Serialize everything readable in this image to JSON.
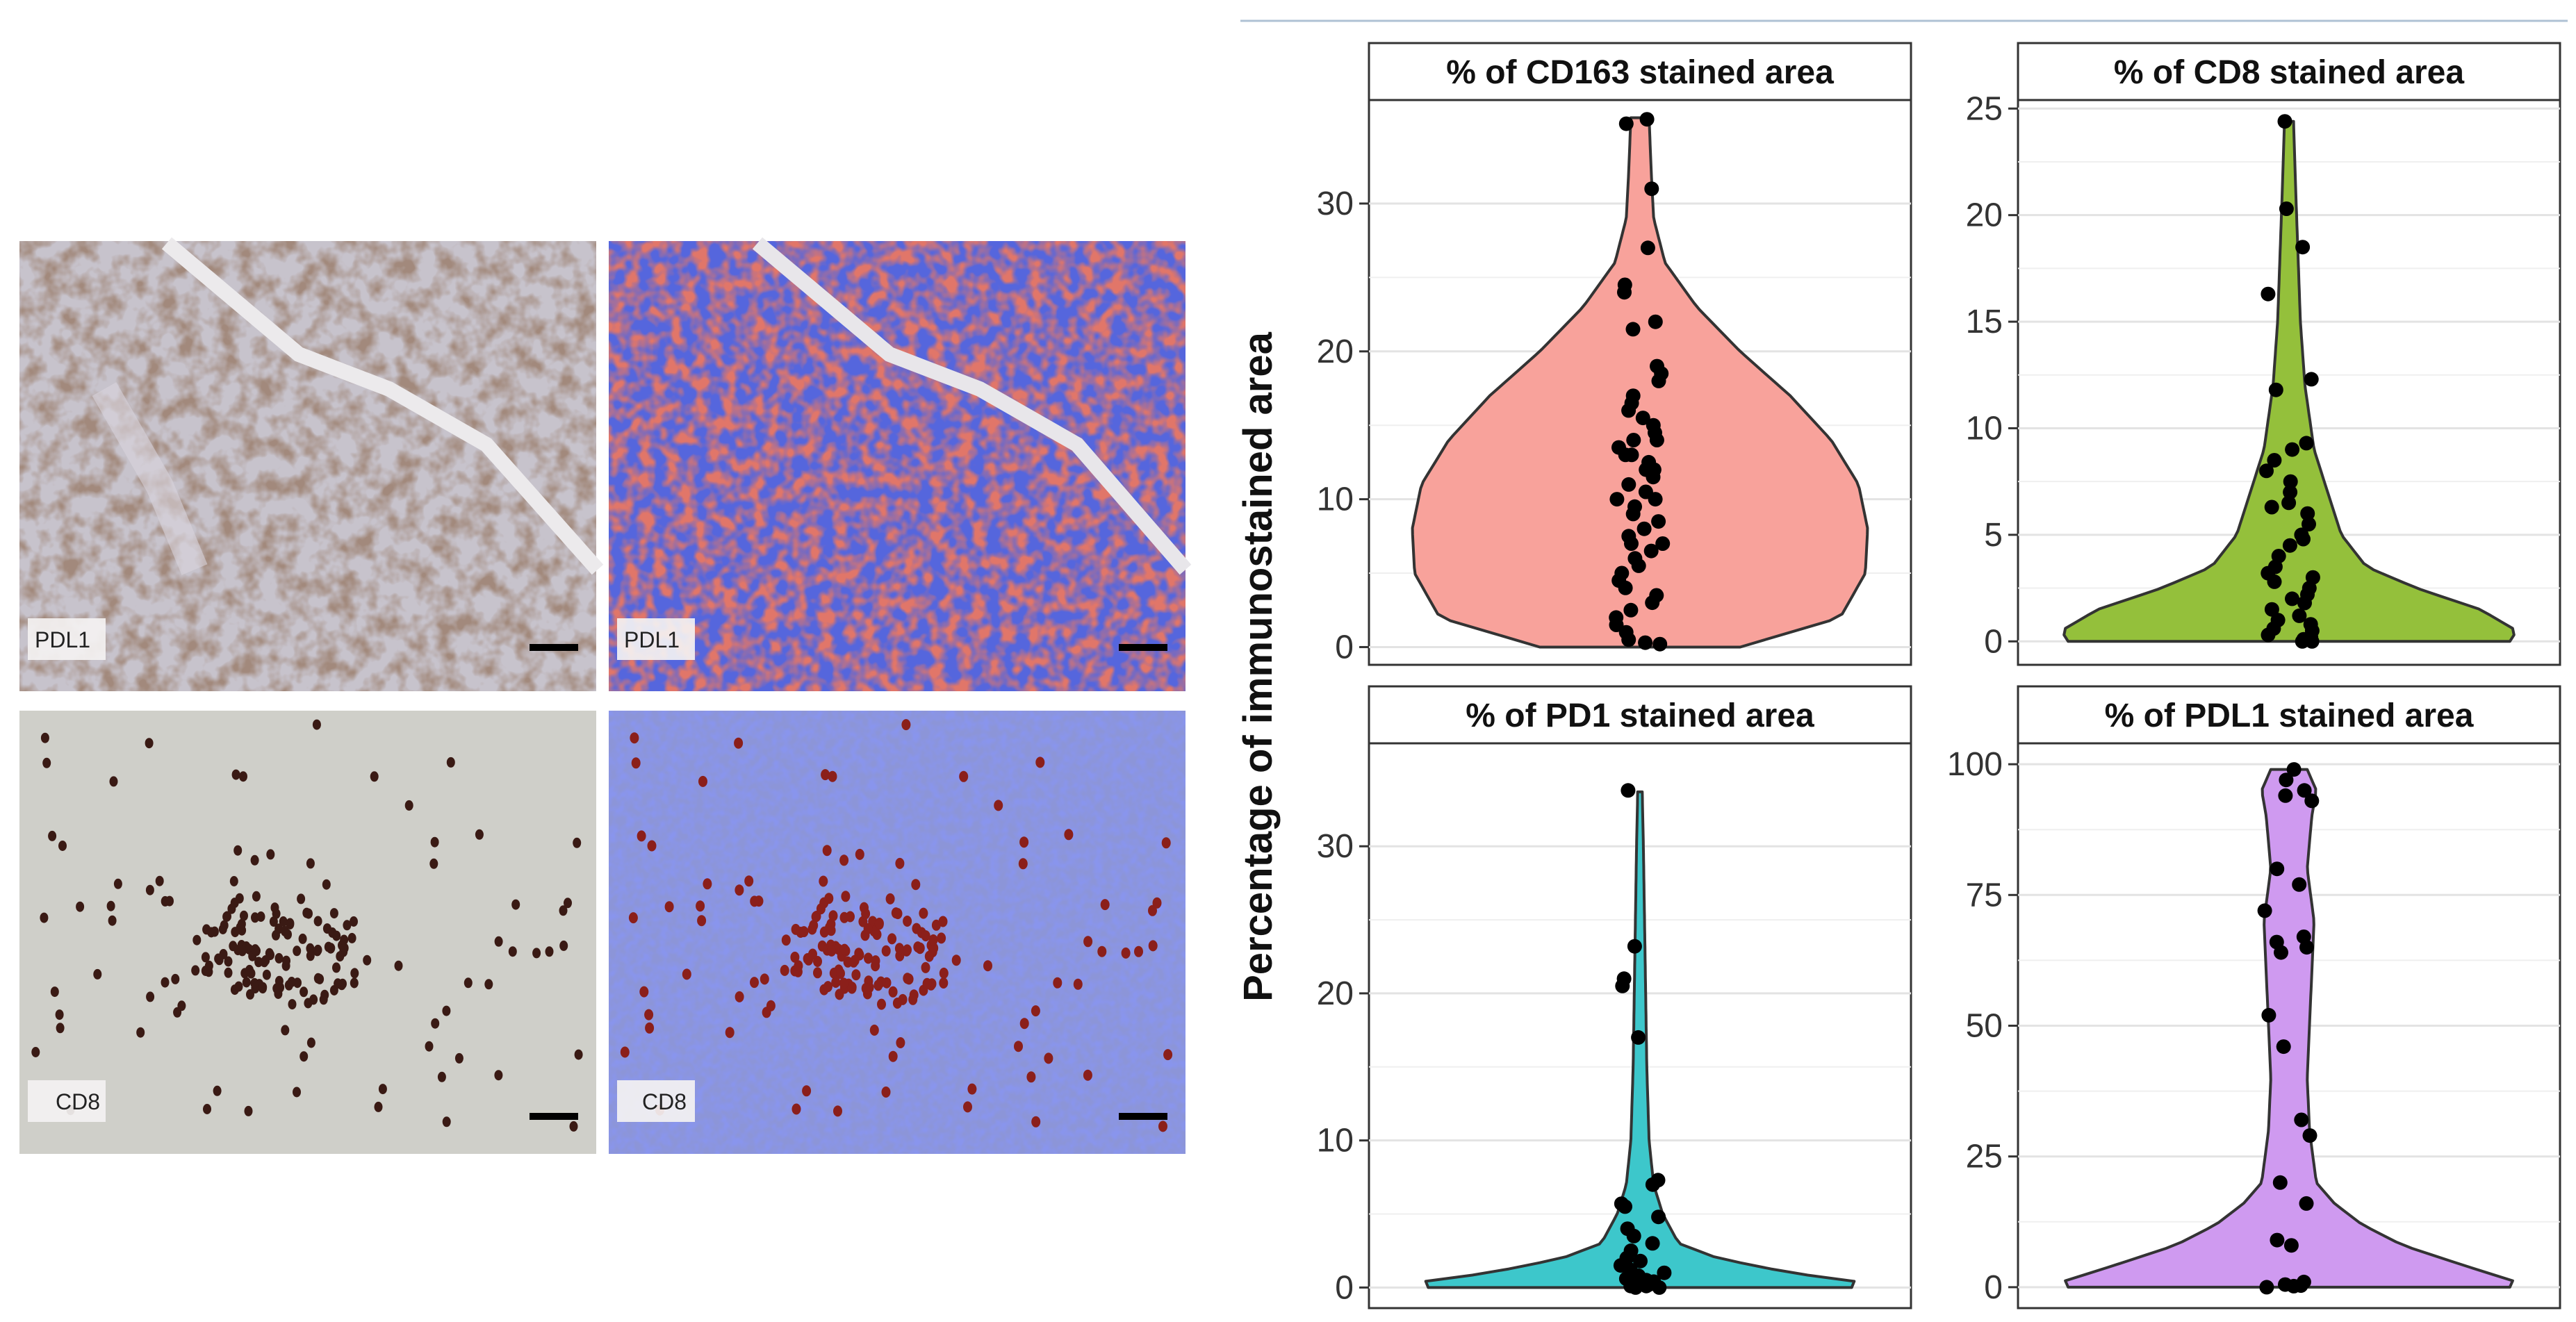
{
  "micrographs": [
    {
      "label": "PDL1",
      "stain": "IHC"
    },
    {
      "label": "PDL1",
      "stain": "segmentation"
    },
    {
      "label": "CD8",
      "stain": "IHC"
    },
    {
      "label": "CD8",
      "stain": "segmentation"
    }
  ],
  "colors": {
    "cd163": "#F8A29B",
    "cd8": "#94C03B",
    "pd1": "#3DC7CB",
    "pdl1": "#CF9AF0",
    "points": "#000000",
    "outline": "#333333"
  },
  "chart_data": {
    "ylabel": "Percentage of immunostained area",
    "panels": [
      {
        "type": "violin",
        "title": "% of CD163 stained area",
        "color_key": "cd163",
        "ylim": [
          -1.2,
          37
        ],
        "yticks": [
          0,
          10,
          20,
          30
        ],
        "tick_labels": [
          "0",
          "10",
          "20",
          "30"
        ],
        "violin_width_at": [
          [
            0,
            0.44
          ],
          [
            2,
            0.88
          ],
          [
            5,
            0.99
          ],
          [
            8,
            1.0
          ],
          [
            11,
            0.96
          ],
          [
            14,
            0.84
          ],
          [
            17,
            0.66
          ],
          [
            20,
            0.44
          ],
          [
            23,
            0.25
          ],
          [
            26,
            0.11
          ],
          [
            29,
            0.06
          ],
          [
            32,
            0.05
          ],
          [
            35.8,
            0.04
          ]
        ],
        "points": [
          35.7,
          35.4,
          31,
          27,
          24.5,
          24,
          22,
          21.5,
          19,
          18.5,
          18,
          17,
          16.5,
          16,
          15.5,
          15,
          14.5,
          14,
          14,
          13.5,
          13,
          13,
          12.5,
          12,
          12,
          11.5,
          11,
          10.5,
          10,
          10,
          9.5,
          9,
          8.5,
          8,
          7.5,
          7,
          7,
          6.5,
          6,
          5.5,
          5,
          4.5,
          4,
          3.5,
          3,
          2.5,
          2,
          1.5,
          1,
          0.5,
          0.3,
          0.2
        ]
      },
      {
        "type": "violin",
        "title": "% of CD8 stained area",
        "color_key": "cd8",
        "ylim": [
          -1.1,
          25.4
        ],
        "yticks": [
          0,
          5,
          10,
          15,
          20,
          25
        ],
        "tick_labels": [
          "0",
          "5",
          "10",
          "15",
          "20",
          "25"
        ],
        "violin_width_at": [
          [
            0,
            0.97
          ],
          [
            0.5,
            1.0
          ],
          [
            1.5,
            0.84
          ],
          [
            2.5,
            0.56
          ],
          [
            3.5,
            0.34
          ],
          [
            5,
            0.23
          ],
          [
            7,
            0.17
          ],
          [
            9,
            0.11
          ],
          [
            12,
            0.07
          ],
          [
            15,
            0.05
          ],
          [
            18,
            0.04
          ],
          [
            21,
            0.03
          ],
          [
            24.4,
            0.02
          ]
        ],
        "points": [
          24.4,
          20.3,
          18.5,
          16.3,
          12.3,
          11.8,
          9.3,
          9,
          8.5,
          8,
          7.5,
          7,
          6.5,
          6.3,
          6,
          5.5,
          5,
          4.8,
          4.5,
          4,
          3.5,
          3.2,
          3,
          2.8,
          2.5,
          2.2,
          2,
          1.8,
          1.5,
          1.2,
          1,
          0.8,
          0.6,
          0.5,
          0.3,
          0.2,
          0.1,
          0.1,
          0,
          0
        ]
      },
      {
        "type": "violin",
        "title": "% of PD1 stained area",
        "color_key": "pd1",
        "ylim": [
          -1.4,
          37
        ],
        "yticks": [
          0,
          10,
          20,
          30
        ],
        "tick_labels": [
          "0",
          "10",
          "20",
          "30"
        ],
        "violin_width_at": [
          [
            0,
            0.93
          ],
          [
            0.3,
            1.0
          ],
          [
            1,
            0.66
          ],
          [
            2,
            0.34
          ],
          [
            3,
            0.17
          ],
          [
            5,
            0.1
          ],
          [
            7,
            0.06
          ],
          [
            10,
            0.04
          ],
          [
            15,
            0.03
          ],
          [
            20,
            0.025
          ],
          [
            25,
            0.02
          ],
          [
            30,
            0.015
          ],
          [
            33.7,
            0.01
          ]
        ],
        "points": [
          33.8,
          23.2,
          21,
          20.5,
          17,
          7.3,
          7,
          5.7,
          5.5,
          4.8,
          4,
          3.5,
          3,
          2.5,
          2,
          1.8,
          1.5,
          1.2,
          1,
          0.8,
          0.6,
          0.5,
          0.4,
          0.3,
          0.2,
          0.1,
          0.1,
          0,
          0
        ]
      },
      {
        "type": "violin",
        "title": "% of PDL1 stained area",
        "color_key": "pdl1",
        "ylim": [
          -4,
          104
        ],
        "yticks": [
          0,
          25,
          50,
          75,
          100
        ],
        "tick_labels": [
          "0",
          "25",
          "50",
          "75",
          "100"
        ],
        "violin_width_at": [
          [
            0,
            0.97
          ],
          [
            1,
            1.0
          ],
          [
            4,
            0.78
          ],
          [
            8,
            0.5
          ],
          [
            12,
            0.32
          ],
          [
            16,
            0.2
          ],
          [
            20,
            0.12
          ],
          [
            30,
            0.09
          ],
          [
            40,
            0.08
          ],
          [
            50,
            0.09
          ],
          [
            60,
            0.1
          ],
          [
            70,
            0.11
          ],
          [
            80,
            0.08
          ],
          [
            90,
            0.1
          ],
          [
            95,
            0.12
          ],
          [
            99,
            0.08
          ]
        ],
        "points": [
          99,
          97,
          95,
          94,
          93,
          80,
          77,
          72,
          67,
          66,
          65,
          64,
          52,
          46,
          32,
          29,
          20,
          16,
          9,
          8,
          1,
          0.5,
          0.3,
          0.2,
          0
        ]
      }
    ]
  }
}
